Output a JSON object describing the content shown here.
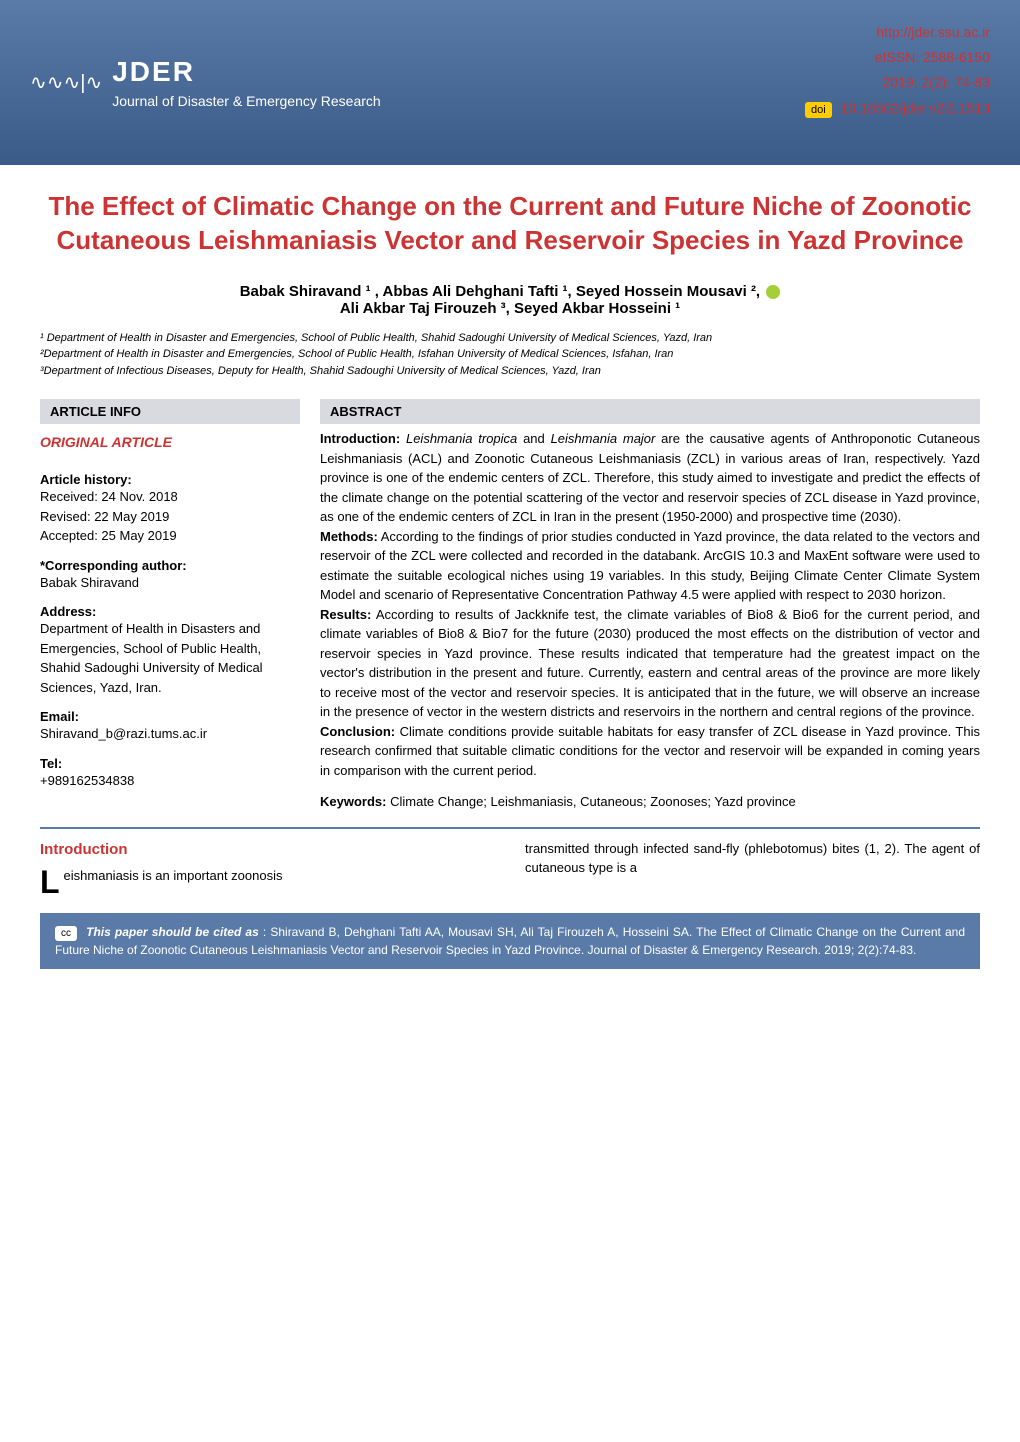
{
  "header": {
    "journal_name": "JDER",
    "journal_tagline": "Journal of Disaster & Emergency Research",
    "url": "http://jder.ssu.ac.ir",
    "eissn": "eISSN: 2588-6150",
    "citation": "2019; 2(2): 74-83",
    "doi_label": "doi",
    "doi": "10.18502/jder.v2i2.1513",
    "colors": {
      "banner_bg": "#5a7aa8",
      "header_text": "#cc3333",
      "doi_badge_bg": "#ffcc00"
    }
  },
  "title": "The Effect of Climatic Change on the Current and Future Niche of Zoonotic Cutaneous Leishmaniasis Vector and Reservoir Species in Yazd Province",
  "authors_line1": "Babak Shiravand ¹ , Abbas Ali Dehghani Tafti ¹, Seyed Hossein Mousavi ²,",
  "authors_line2": "Ali Akbar Taj Firouzeh ³, Seyed Akbar Hosseini ¹",
  "affiliations": {
    "aff1": "¹ Department of Health in Disaster and Emergencies, School of Public Health, Shahid Sadoughi University of Medical Sciences, Yazd, Iran",
    "aff2": "²Department of Health in Disaster and Emergencies, School of Public Health, Isfahan University of Medical Sciences, Isfahan, Iran",
    "aff3": "³Department of Infectious Diseases, Deputy for Health, Shahid Sadoughi University of Medical Sciences, Yazd, Iran"
  },
  "article_info": {
    "header": "ARTICLE INFO",
    "original_article": "ORIGINAL ARTICLE",
    "history_label": "Article history:",
    "received": "Received: 24 Nov. 2018",
    "revised": "Revised: 22 May 2019",
    "accepted": "Accepted: 25 May 2019",
    "corresponding_label": "*Corresponding author:",
    "corresponding_name": "Babak Shiravand",
    "address_label": "Address:",
    "address": "Department of Health in Disasters and Emergencies, School of Public Health, Shahid Sadoughi University of Medical Sciences, Yazd, Iran.",
    "email_label": "Email:",
    "email": "Shiravand_b@razi.tums.ac.ir",
    "tel_label": "Tel:",
    "tel": "+989162534838"
  },
  "abstract": {
    "header": "ABSTRACT",
    "intro_label": "Introduction:",
    "intro_text": " Leishmania tropica and Leishmania major are the causative agents of Anthroponotic Cutaneous Leishmaniasis (ACL) and Zoonotic Cutaneous Leishmaniasis (ZCL) in various areas of Iran, respectively. Yazd province is one of the endemic centers of ZCL. Therefore, this study aimed to investigate and predict the effects of the climate change on the potential scattering of the vector and reservoir species of ZCL disease in Yazd province, as one of the endemic centers of ZCL in Iran in the present (1950-2000) and prospective time (2030).",
    "methods_label": "Methods:",
    "methods_text": " According to the findings of prior studies conducted in Yazd province, the data related to the vectors and reservoir of the ZCL were collected and recorded in the databank. ArcGIS 10.3 and MaxEnt software were used to estimate the suitable ecological niches using 19 variables. In this study, Beijing Climate Center Climate System Model and scenario of Representative Concentration Pathway 4.5 were applied with respect to 2030 horizon.",
    "results_label": "Results:",
    "results_text": " According to results of Jackknife test, the climate variables of Bio8 & Bio6 for the current period, and climate variables of Bio8 & Bio7 for the future (2030) produced the most effects on the distribution of vector and reservoir species in Yazd province. These results indicated that temperature had the greatest impact on the vector's distribution in the present and future. Currently, eastern and central areas of the province are more likely to receive most of the vector and reservoir species. It is anticipated that in the future, we will observe an increase in the presence of vector in the western districts and reservoirs in the northern and central regions of the province.",
    "conclusion_label": "Conclusion:",
    "conclusion_text": " Climate conditions provide suitable habitats for easy transfer of ZCL disease in Yazd province. This research confirmed that suitable climatic conditions for the vector and reservoir will be expanded in coming years in comparison with the current period.",
    "keywords_label": "Keywords:",
    "keywords_text": " Climate Change; Leishmaniasis, Cutaneous; Zoonoses; Yazd province"
  },
  "introduction": {
    "heading": "Introduction",
    "left_text": "eishmaniasis is an important zoonosis",
    "drop_cap": "L",
    "right_text": "transmitted through infected sand-fly (phlebotomus) bites (1, 2). The agent of cutaneous type is a"
  },
  "citation_box": {
    "cc_label": "cc",
    "label": "This paper should be cited as",
    "text": ": Shiravand B, Dehghani Tafti AA, Mousavi SH, Ali Taj Firouzeh A, Hosseini SA. The Effect of Climatic Change on the Current and Future Niche of Zoonotic Cutaneous Leishmaniasis Vector and Reservoir Species in Yazd Province. Journal of Disaster & Emergency Research. 2019; 2(2):74-83."
  }
}
